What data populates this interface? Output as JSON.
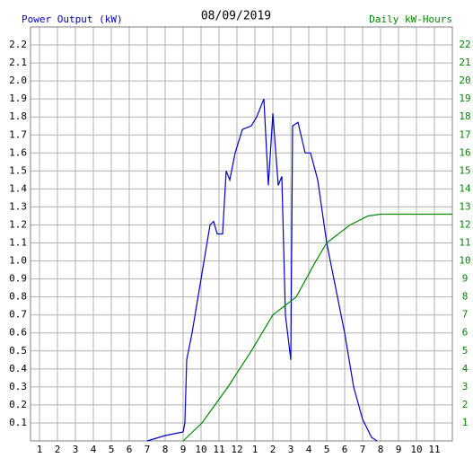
{
  "chart_data": {
    "type": "line",
    "title": "08/09/2019",
    "xlim": [
      0.5,
      24
    ],
    "xticks": [
      1,
      2,
      3,
      4,
      5,
      6,
      7,
      8,
      9,
      10,
      11,
      12,
      {
        "value": 13,
        "label": "1"
      },
      {
        "value": 14,
        "label": "2"
      },
      {
        "value": 15,
        "label": "3"
      },
      {
        "value": 16,
        "label": "4"
      },
      {
        "value": 17,
        "label": "5"
      },
      {
        "value": 18,
        "label": "6"
      },
      {
        "value": 19,
        "label": "7"
      },
      {
        "value": 20,
        "label": "8"
      },
      {
        "value": 21,
        "label": "9"
      },
      {
        "value": 22,
        "label": "10"
      },
      {
        "value": 23,
        "label": "11"
      }
    ],
    "ylim": [
      0,
      2.3
    ],
    "yticks": [
      0.1,
      0.2,
      0.3,
      0.4,
      0.5,
      0.6,
      0.7,
      0.8,
      0.9,
      {
        "value": 1,
        "label": "1.0"
      },
      1.1,
      1.2,
      1.3,
      1.4,
      1.5,
      1.6,
      1.7,
      1.8,
      1.9,
      {
        "value": 2,
        "label": "2.0"
      },
      2.1,
      2.2
    ],
    "y2lim": [
      0,
      23
    ],
    "y2ticks": [
      1,
      2,
      3,
      4,
      5,
      6,
      7,
      8,
      9,
      10,
      11,
      12,
      13,
      14,
      15,
      16,
      17,
      18,
      19,
      20,
      21,
      22
    ],
    "grid": true,
    "series": [
      {
        "name": "Power Output (kW)",
        "color": "#0000cc",
        "x": [
          7,
          8,
          9,
          9.1,
          9.2,
          9.5,
          10,
          10.5,
          10.7,
          10.9,
          11.2,
          11.4,
          11.6,
          11.9,
          12.3,
          12.8,
          13.1,
          13.5,
          13.75,
          14,
          14.3,
          14.5,
          14.7,
          15,
          15.1,
          15.4,
          15.8,
          16.1,
          16.5,
          17,
          17.5,
          18,
          18.5,
          19,
          19.5,
          19.8
        ],
        "values": [
          0,
          0.03,
          0.05,
          0.1,
          0.45,
          0.6,
          0.9,
          1.2,
          1.22,
          1.15,
          1.15,
          1.5,
          1.45,
          1.6,
          1.73,
          1.75,
          1.8,
          1.9,
          1.42,
          1.82,
          1.42,
          1.47,
          0.7,
          0.45,
          1.75,
          1.77,
          1.6,
          1.6,
          1.45,
          1.1,
          0.85,
          0.6,
          0.3,
          0.12,
          0.02,
          0
        ]
      },
      {
        "name": "Daily kW-Hours",
        "color": "#008800",
        "axis": "y2",
        "x": [
          9,
          10.05,
          11.5,
          12.8,
          14,
          15.3,
          16.4,
          17,
          18.3,
          19.3,
          20,
          24
        ],
        "values": [
          0,
          1,
          3,
          5,
          7,
          8,
          10,
          11,
          12,
          12.5,
          12.6,
          12.6
        ]
      }
    ]
  }
}
